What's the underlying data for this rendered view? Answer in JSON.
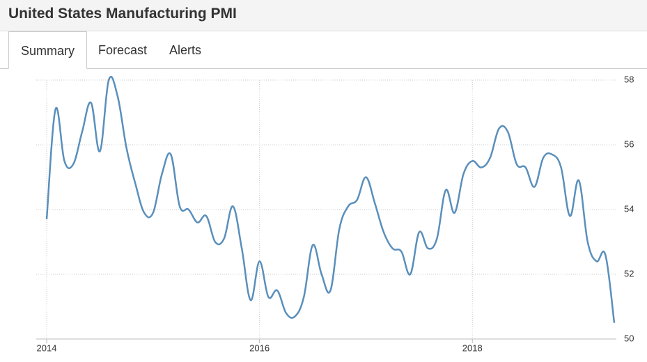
{
  "header": {
    "title": "United States Manufacturing PMI"
  },
  "tabs": [
    "Summary",
    "Forecast",
    "Alerts"
  ],
  "chart_data": {
    "type": "line",
    "categories": [
      "2014",
      null,
      null,
      null,
      null,
      null,
      null,
      null,
      null,
      null,
      null,
      null,
      null,
      null,
      null,
      null,
      null,
      null,
      null,
      null,
      null,
      null,
      null,
      null,
      "2016",
      null,
      null,
      null,
      null,
      null,
      null,
      null,
      null,
      null,
      null,
      null,
      null,
      null,
      null,
      null,
      null,
      null,
      null,
      null,
      null,
      null,
      null,
      null,
      "2018",
      null,
      null,
      null,
      null,
      null,
      null,
      null,
      null,
      null,
      null,
      null,
      null,
      null,
      null,
      null,
      null
    ],
    "series": [
      {
        "color": "#5a8fbb",
        "values": [
          53.7,
          57.1,
          55.5,
          55.4,
          56.4,
          57.3,
          55.8,
          58.0,
          57.5,
          55.9,
          54.8,
          53.9,
          53.9,
          55.1,
          55.7,
          54.1,
          54.0,
          53.6,
          53.8,
          53.0,
          53.1,
          54.1,
          52.8,
          51.2,
          52.4,
          51.3,
          51.5,
          50.8,
          50.7,
          51.3,
          52.9,
          52.0,
          51.5,
          53.4,
          54.1,
          54.3,
          55.0,
          54.2,
          53.3,
          52.8,
          52.7,
          52.0,
          53.3,
          52.8,
          53.1,
          54.6,
          53.9,
          55.1,
          55.5,
          55.3,
          55.6,
          56.5,
          56.4,
          55.4,
          55.3,
          54.7,
          55.6,
          55.7,
          55.3,
          53.8,
          54.9,
          53.0,
          52.4,
          52.6,
          50.5
        ]
      }
    ],
    "ylim": [
      50,
      58
    ],
    "yticks": [
      50,
      52,
      54,
      56,
      58
    ],
    "grid": true
  }
}
